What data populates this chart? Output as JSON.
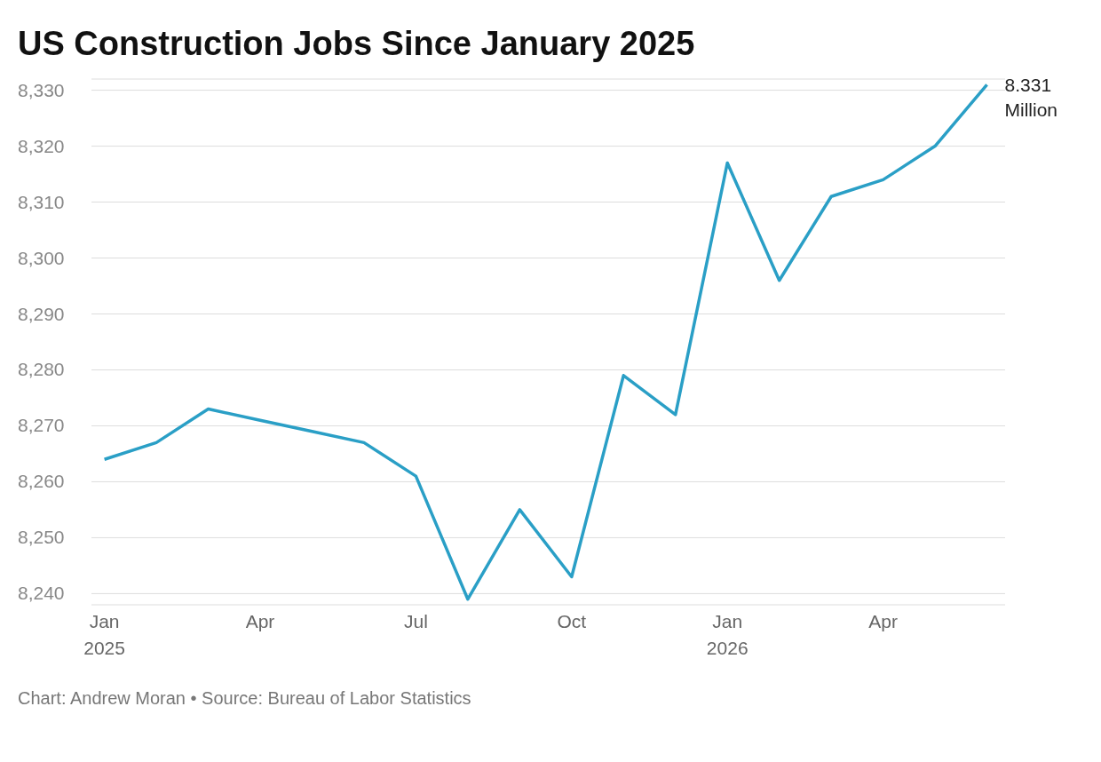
{
  "chart_data": {
    "type": "line",
    "title": "US Construction Jobs Since January 2025",
    "categories": [
      "Jan 2025",
      null,
      null,
      "Apr",
      null,
      null,
      "Jul",
      null,
      null,
      "Oct",
      null,
      null,
      "Jan 2026",
      null,
      null,
      "Apr",
      null,
      null
    ],
    "series": [
      {
        "color": "#2a9fc6",
        "values": [
          8264,
          8267,
          8273,
          8271,
          8269,
          8267,
          8261,
          8239,
          8255,
          8243,
          8279,
          8272,
          8317,
          8296,
          8311,
          8314,
          8320,
          8331
        ]
      }
    ],
    "ylim": [
      8238,
      8332
    ],
    "yticks": [
      {
        "value": 8240,
        "label": "8,240"
      },
      {
        "value": 8250,
        "label": "8,250"
      },
      {
        "value": 8260,
        "label": "8,260"
      },
      {
        "value": 8270,
        "label": "8,270"
      },
      {
        "value": 8280,
        "label": "8,280"
      },
      {
        "value": 8290,
        "label": "8,290"
      },
      {
        "value": 8300,
        "label": "8,300"
      },
      {
        "value": 8310,
        "label": "8,310"
      },
      {
        "value": 8320,
        "label": "8,320"
      },
      {
        "value": 8330,
        "label": "8,330"
      }
    ],
    "grid": "y",
    "marker": "none",
    "line_style": "solid",
    "legend": false,
    "annotations": [
      "8.331 Million",
      "Chart: Andrew Moran • Source: Bureau of Labor Statistics"
    ]
  }
}
